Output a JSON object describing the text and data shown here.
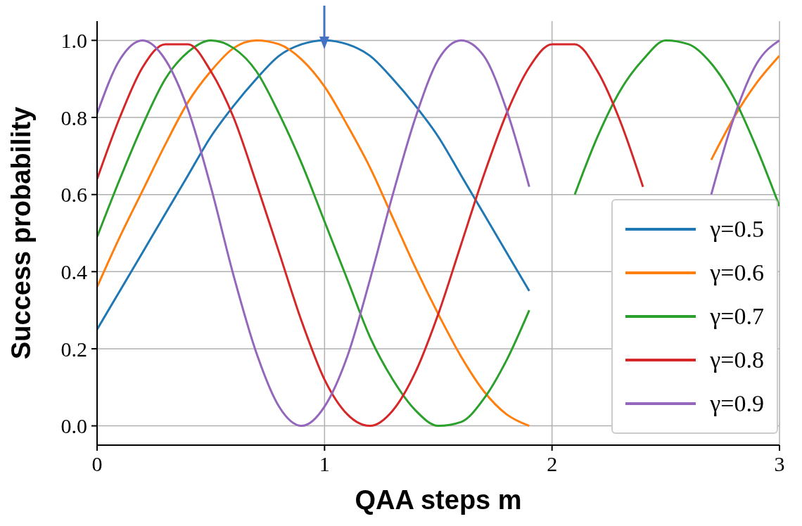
{
  "chart_data": {
    "type": "line",
    "xlabel": "QAA steps m",
    "ylabel": "Success probability",
    "x": [
      0,
      0.1,
      0.2,
      0.3,
      0.4,
      0.5,
      0.6,
      0.7,
      0.8,
      0.9,
      1,
      1.1,
      1.2,
      1.3,
      1.4,
      1.5,
      1.6,
      1.7,
      1.8,
      1.9,
      2,
      2.1,
      2.2,
      2.3,
      2.4,
      2.5,
      2.6,
      2.7,
      2.8,
      2.9,
      3
    ],
    "series": [
      {
        "name": "γ=0.5",
        "color": "#1f77b4",
        "values": [
          0.25,
          0.35,
          0.45,
          0.55,
          0.65,
          0.75,
          0.83,
          0.9,
          0.96,
          0.99,
          1.0,
          0.99,
          0.96,
          0.9,
          0.83,
          0.75,
          0.65,
          0.55,
          0.45,
          0.35,
          null,
          null,
          null,
          null,
          null,
          null,
          null,
          null,
          null,
          null,
          null
        ]
      },
      {
        "name": "γ=0.6",
        "color": "#ff7f0e",
        "values": [
          0.36,
          0.49,
          0.61,
          0.73,
          0.84,
          0.92,
          0.98,
          1.0,
          0.99,
          0.95,
          0.88,
          0.78,
          0.67,
          0.54,
          0.41,
          0.29,
          0.18,
          0.09,
          0.03,
          0.0,
          null,
          null,
          null,
          null,
          null,
          null,
          null,
          0.69,
          0.8,
          0.89,
          0.96
        ]
      },
      {
        "name": "γ=0.7",
        "color": "#2ca02c",
        "values": [
          0.49,
          0.64,
          0.78,
          0.9,
          0.97,
          1.0,
          0.98,
          0.92,
          0.81,
          0.68,
          0.53,
          0.38,
          0.23,
          0.12,
          0.04,
          0.0,
          0.01,
          0.07,
          0.17,
          0.3,
          null,
          0.6,
          0.75,
          0.87,
          0.95,
          1.0,
          0.99,
          0.94,
          0.85,
          0.72,
          0.57
        ]
      },
      {
        "name": "γ=0.8",
        "color": "#d62728",
        "values": [
          0.64,
          0.8,
          0.93,
          0.99,
          0.99,
          0.92,
          0.8,
          0.63,
          0.45,
          0.27,
          0.12,
          0.03,
          0.0,
          0.04,
          0.14,
          0.29,
          0.47,
          0.65,
          0.81,
          0.93,
          0.99,
          0.99,
          0.92,
          0.79,
          0.62,
          null,
          null,
          null,
          null,
          null,
          null
        ]
      },
      {
        "name": "γ=0.9",
        "color": "#9467bd",
        "values": [
          0.81,
          0.95,
          1.0,
          0.95,
          0.82,
          0.62,
          0.39,
          0.19,
          0.05,
          0.0,
          0.05,
          0.18,
          0.38,
          0.6,
          0.8,
          0.95,
          1.0,
          0.96,
          0.82,
          0.62,
          null,
          null,
          null,
          null,
          null,
          null,
          null,
          0.6,
          0.8,
          0.94,
          1.0
        ]
      }
    ],
    "xlim": [
      0,
      3
    ],
    "xticks": [
      0,
      1,
      2,
      3
    ],
    "ylim": [
      -0.05,
      1.05
    ],
    "yticks": [
      {
        "value": 0,
        "label": "0.0"
      },
      {
        "value": 0.2,
        "label": "0.2"
      },
      {
        "value": 0.4,
        "label": "0.4"
      },
      {
        "value": 0.6,
        "label": "0.6"
      },
      {
        "value": 0.8,
        "label": "0.8"
      },
      {
        "value": 1,
        "label": "1.0"
      }
    ],
    "grid": true,
    "legend": "bottom right",
    "marker": "none",
    "line_style": "solid"
  }
}
